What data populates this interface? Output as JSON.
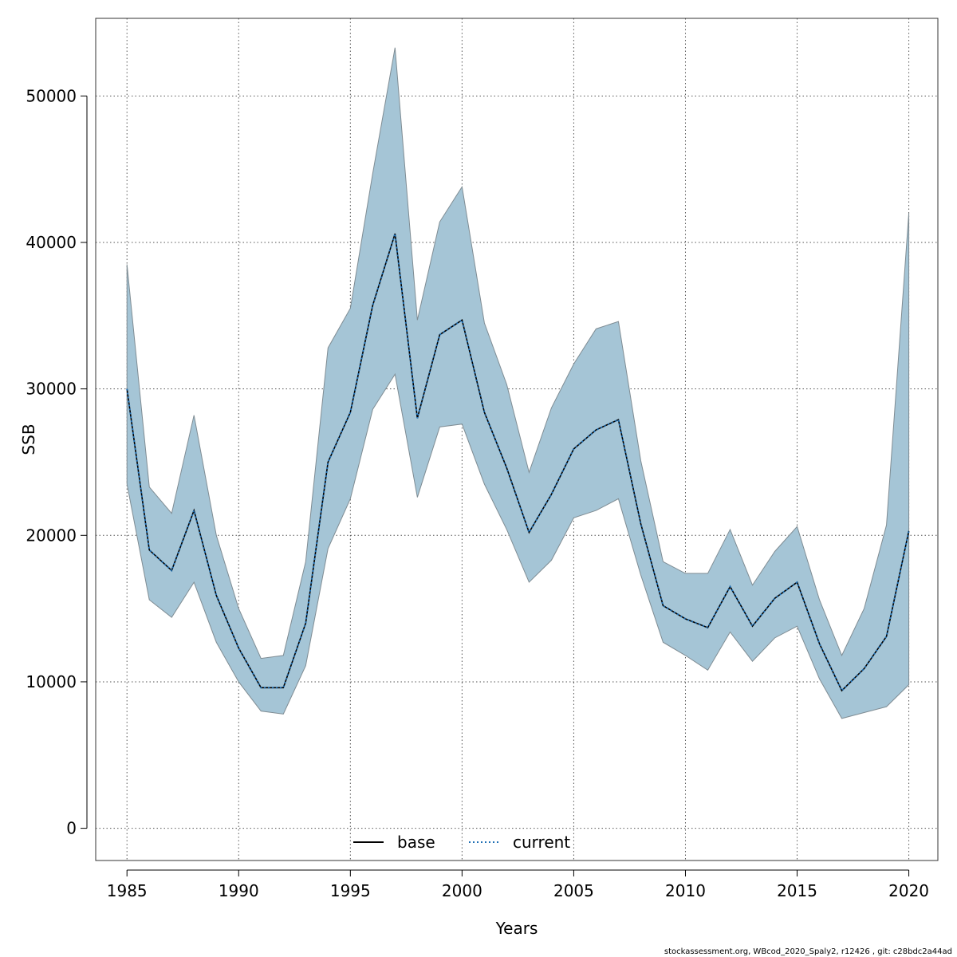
{
  "chart_data": {
    "type": "line",
    "title": "",
    "xlabel": "Years",
    "ylabel": "SSB",
    "xlim": [
      1983.6,
      2021.3
    ],
    "ylim": [
      -2200,
      55300
    ],
    "x_ticks": [
      1985,
      1990,
      1995,
      2000,
      2005,
      2010,
      2015,
      2020
    ],
    "y_ticks": [
      0,
      10000,
      20000,
      30000,
      40000,
      50000
    ],
    "grid": true,
    "grid_style": "dotted",
    "legend_placement": "bottom-center",
    "x": [
      1985,
      1986,
      1987,
      1988,
      1989,
      1990,
      1991,
      1992,
      1993,
      1994,
      1995,
      1996,
      1997,
      1998,
      1999,
      2000,
      2001,
      2002,
      2003,
      2004,
      2005,
      2006,
      2007,
      2008,
      2009,
      2010,
      2011,
      2012,
      2013,
      2014,
      2015,
      2016,
      2017,
      2018,
      2019,
      2020
    ],
    "series": [
      {
        "name": "base",
        "line_style": "solid",
        "color": "#000000",
        "values": [
          30000,
          19000,
          17600,
          21700,
          15900,
          12300,
          9600,
          9600,
          14000,
          25000,
          28400,
          35700,
          40600,
          28000,
          33700,
          34700,
          28400,
          24600,
          20200,
          22800,
          25900,
          27200,
          27900,
          20800,
          15200,
          14300,
          13700,
          16500,
          13800,
          15700,
          16800,
          12600,
          9400,
          10900,
          13100,
          20300
        ]
      },
      {
        "name": "current",
        "line_style": "dotted",
        "color": "#1f6fb4",
        "values": [
          30000,
          19000,
          17600,
          21700,
          15900,
          12300,
          9600,
          9600,
          14000,
          25000,
          28400,
          35700,
          40600,
          28000,
          33700,
          34700,
          28400,
          24600,
          20200,
          22800,
          25900,
          27200,
          27900,
          20800,
          15200,
          14300,
          13700,
          16500,
          13800,
          15700,
          16800,
          12600,
          9400,
          10900,
          13100,
          20300
        ]
      }
    ],
    "confidence_band": {
      "fill_color": "#a5c5d6",
      "stroke_color": "#7f8c93",
      "upper": [
        38500,
        23300,
        21500,
        28200,
        20000,
        15000,
        11600,
        11800,
        18200,
        32800,
        35500,
        44700,
        53300,
        34700,
        41400,
        43800,
        34500,
        30300,
        24300,
        28700,
        31700,
        34100,
        34600,
        25100,
        18200,
        17400,
        17400,
        20400,
        16600,
        18900,
        20600,
        15600,
        11800,
        15000,
        20700,
        42000
      ],
      "lower": [
        23500,
        15600,
        14400,
        16800,
        12700,
        10000,
        8000,
        7800,
        11100,
        19100,
        22500,
        28600,
        31000,
        22600,
        27400,
        27600,
        23500,
        20400,
        16800,
        18300,
        21200,
        21700,
        22500,
        17300,
        12700,
        11800,
        10800,
        13400,
        11400,
        13000,
        13800,
        10200,
        7500,
        7900,
        8300,
        9800
      ]
    }
  },
  "footer_text": "stockassessment.org, WBcod_2020_Spaly2, r12426 , git: c28bdc2a44ad"
}
